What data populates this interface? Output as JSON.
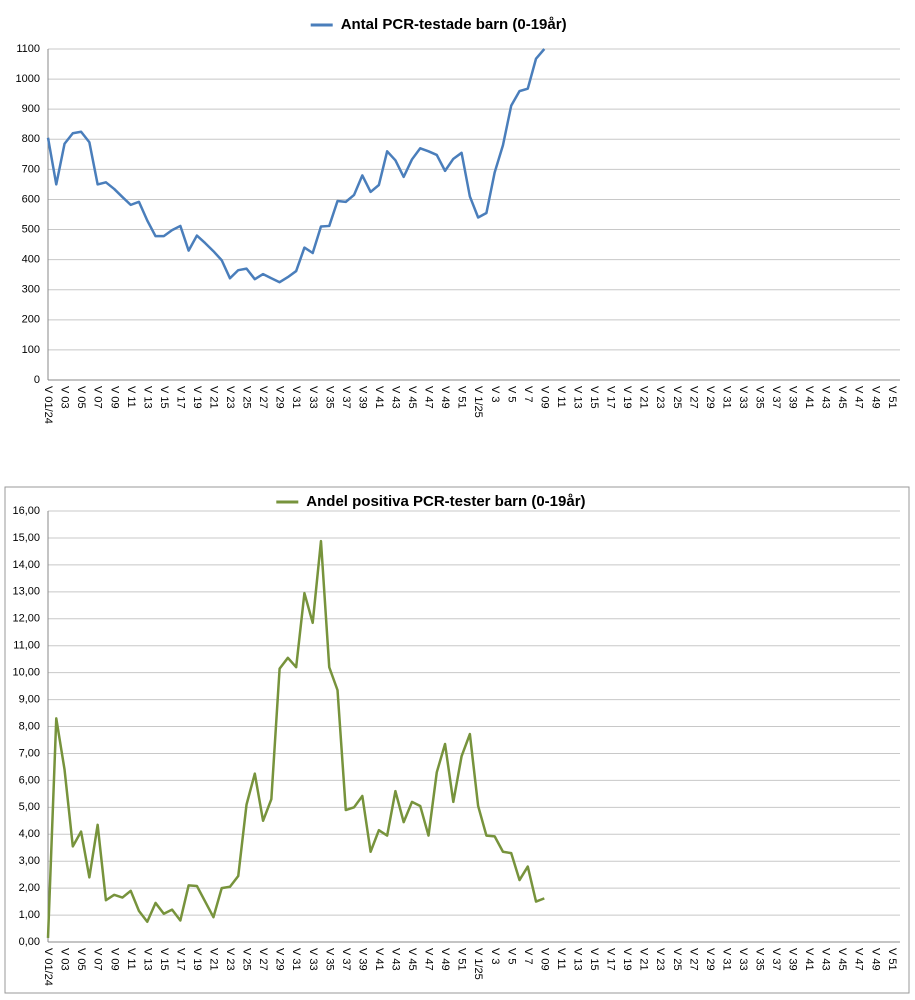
{
  "chart_data": [
    {
      "type": "line",
      "categories": [
        "V 01/24",
        null,
        "V 03",
        null,
        "V 05",
        null,
        "V 07",
        null,
        "V 09",
        null,
        "V 11",
        null,
        "V 13",
        null,
        "V 15",
        null,
        "V 17",
        null,
        "V 19",
        null,
        "V 21",
        null,
        "V 23",
        null,
        "V 25",
        null,
        "V 27",
        null,
        "V 29",
        null,
        "V 31",
        null,
        "V 33",
        null,
        "V 35",
        null,
        "V 37",
        null,
        "V 39",
        null,
        "V 41",
        null,
        "V 43",
        null,
        "V 45",
        null,
        "V 47",
        null,
        "V 49",
        null,
        "V 51",
        null,
        "V 1/25",
        null,
        "V 3",
        null,
        "V 5",
        null,
        "V 7",
        null,
        "V 09",
        null,
        "V 11",
        null,
        "V 13",
        null,
        "V 15",
        null,
        "V 17",
        null,
        "V 19",
        null,
        "V 21",
        null,
        "V 23",
        null,
        "V 25",
        null,
        "V 27",
        null,
        "V 29",
        null,
        "V 31",
        null,
        "V 33",
        null,
        "V 35",
        null,
        "V 37",
        null,
        "V 39",
        null,
        "V 41",
        null,
        "V 43",
        null,
        "V 45",
        null,
        "V 47",
        null,
        "V 49",
        null,
        "V 51",
        null
      ],
      "series": [
        {
          "name": "Antal PCR-testade barn (0-19år)",
          "color": "#4a7ebb",
          "values": [
            805,
            650,
            785,
            820,
            825,
            790,
            650,
            657,
            635,
            608,
            582,
            592,
            530,
            478,
            478,
            498,
            512,
            430,
            480,
            455,
            428,
            398,
            338,
            365,
            370,
            335,
            352,
            338,
            325,
            342,
            362,
            440,
            422,
            510,
            512,
            595,
            592,
            615,
            680,
            625,
            648,
            760,
            730,
            675,
            733,
            770,
            760,
            748,
            695,
            735,
            755,
            610,
            540,
            555,
            690,
            780,
            912,
            960,
            968,
            1068,
            1100,
            null,
            null,
            null,
            null,
            null,
            null,
            null,
            null,
            null,
            null,
            null,
            null,
            null,
            null,
            null,
            null,
            null,
            null,
            null,
            null,
            null,
            null,
            null,
            null,
            null,
            null,
            null,
            null,
            null,
            null,
            null,
            null,
            null,
            null,
            null,
            null,
            null,
            null,
            null,
            null,
            null,
            null,
            null
          ]
        }
      ],
      "ylim": [
        0,
        1100
      ],
      "yticks": [
        0,
        100,
        200,
        300,
        400,
        500,
        600,
        700,
        800,
        900,
        1000,
        1100
      ],
      "grid": true
    },
    {
      "type": "line",
      "categories": [
        "V 01/24",
        null,
        "V 03",
        null,
        "V 05",
        null,
        "V 07",
        null,
        "V 09",
        null,
        "V 11",
        null,
        "V 13",
        null,
        "V 15",
        null,
        "V 17",
        null,
        "V 19",
        null,
        "V 21",
        null,
        "V 23",
        null,
        "V 25",
        null,
        "V 27",
        null,
        "V 29",
        null,
        "V 31",
        null,
        "V 33",
        null,
        "V 35",
        null,
        "V 37",
        null,
        "V 39",
        null,
        "V 41",
        null,
        "V 43",
        null,
        "V 45",
        null,
        "V 47",
        null,
        "V 49",
        null,
        "V 51",
        null,
        "V 1/25",
        null,
        "V 3",
        null,
        "V 5",
        null,
        "V 7",
        null,
        "V 09",
        null,
        "V 11",
        null,
        "V 13",
        null,
        "V 15",
        null,
        "V 17",
        null,
        "V 19",
        null,
        "V 21",
        null,
        "V 23",
        null,
        "V 25",
        null,
        "V 27",
        null,
        "V 29",
        null,
        "V 31",
        null,
        "V 33",
        null,
        "V 35",
        null,
        "V 37",
        null,
        "V 39",
        null,
        "V 41",
        null,
        "V 43",
        null,
        "V 45",
        null,
        "V 47",
        null,
        "V 49",
        null,
        "V 51",
        null
      ],
      "series": [
        {
          "name": "Andel positiva PCR-tester barn (0-19år)",
          "color": "#77933c",
          "values": [
            0.15,
            8.3,
            6.4,
            3.55,
            4.1,
            2.4,
            4.35,
            1.55,
            1.75,
            1.65,
            1.9,
            1.15,
            0.75,
            1.45,
            1.05,
            1.2,
            0.8,
            2.1,
            2.08,
            1.5,
            0.92,
            2.0,
            2.05,
            2.45,
            5.1,
            6.25,
            4.5,
            5.3,
            10.15,
            10.55,
            10.2,
            12.95,
            11.85,
            14.88,
            10.2,
            9.35,
            4.9,
            5.0,
            5.42,
            3.35,
            4.15,
            3.95,
            5.6,
            4.45,
            5.2,
            5.05,
            3.95,
            6.3,
            7.35,
            5.2,
            6.9,
            7.72,
            5.05,
            3.95,
            3.92,
            3.35,
            3.3,
            2.3,
            2.8,
            1.5,
            1.62,
            null,
            null,
            null,
            null,
            null,
            null,
            null,
            null,
            null,
            null,
            null,
            null,
            null,
            null,
            null,
            null,
            null,
            null,
            null,
            null,
            null,
            null,
            null,
            null,
            null,
            null,
            null,
            null,
            null,
            null,
            null,
            null,
            null,
            null,
            null,
            null,
            null,
            null,
            null,
            null,
            null,
            null,
            null
          ]
        }
      ],
      "ylim": [
        0,
        16
      ],
      "yticks": [
        {
          "value": 0,
          "label": "0,00"
        },
        {
          "value": 1,
          "label": "1,00"
        },
        {
          "value": 2,
          "label": "2,00"
        },
        {
          "value": 3,
          "label": "3,00"
        },
        {
          "value": 4,
          "label": "4,00"
        },
        {
          "value": 5,
          "label": "5,00"
        },
        {
          "value": 6,
          "label": "6,00"
        },
        {
          "value": 7,
          "label": "7,00"
        },
        {
          "value": 8,
          "label": "8,00"
        },
        {
          "value": 9,
          "label": "9,00"
        },
        {
          "value": 10,
          "label": "10,00"
        },
        {
          "value": 11,
          "label": "11,00"
        },
        {
          "value": 12,
          "label": "12,00"
        },
        {
          "value": 13,
          "label": "13,00"
        },
        {
          "value": 14,
          "label": "14,00"
        },
        {
          "value": 15,
          "label": "15,00"
        },
        {
          "value": 16,
          "label": "16,00"
        }
      ],
      "grid": true
    }
  ]
}
